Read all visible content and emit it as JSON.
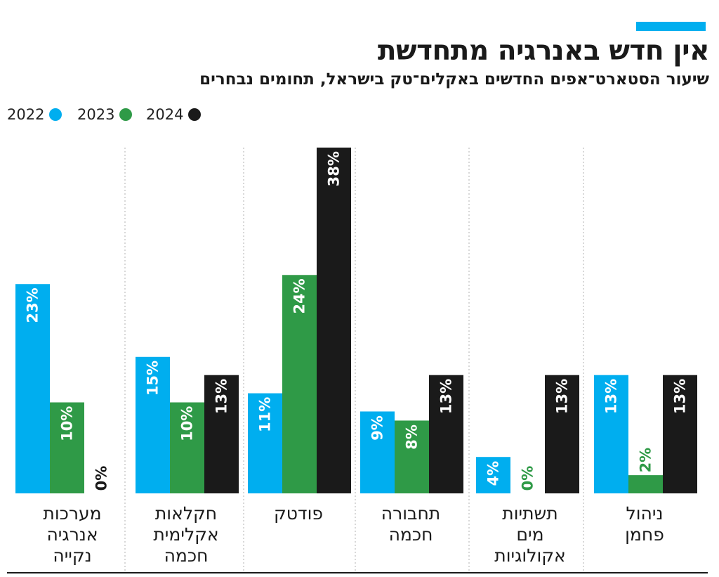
{
  "header": {
    "title": "אין חדש באנרגיה מתחדשת",
    "subtitle": "שיעור הסטארט־אפים החדשים באקלים־טק בישראל, תחומים נבחרים"
  },
  "colors": {
    "accent": "#00aeef",
    "series_2022": "#00aeef",
    "series_2023": "#2f9a47",
    "series_2024": "#1a1a1a",
    "zero_label": "#1a1a1a",
    "zero_label_green": "#2f9a47",
    "grid": "#bdbdbd",
    "baseline": "#1a1a1a"
  },
  "legend": [
    {
      "label": "2022",
      "color": "#00aeef"
    },
    {
      "label": "2023",
      "color": "#2f9a47"
    },
    {
      "label": "2024",
      "color": "#1a1a1a"
    }
  ],
  "chart_data": {
    "type": "bar",
    "title": "אין חדש באנרגיה מתחדשת",
    "subtitle": "שיעור הסטארט־אפים החדשים באקלים־טק בישראל, תחומים נבחרים",
    "unit": "%",
    "ylim": [
      0,
      38
    ],
    "category_label_lines": [
      [
        "מערכות",
        "אנרגיה",
        "נקייה"
      ],
      [
        "חקלאות",
        "אקלימית",
        "חכמה"
      ],
      [
        "פודטק"
      ],
      [
        "תחבורה",
        "חכמה"
      ],
      [
        "תשתיות",
        "מים",
        "אקולוגיות"
      ],
      [
        "ניהול",
        "פחמן"
      ]
    ],
    "categories": [
      "מערכות אנרגיה נקייה",
      "חקלאות אקלימית חכמה",
      "פודטק",
      "תחבורה חכמה",
      "תשתיות מים אקולוגיות",
      "ניהול פחמן"
    ],
    "series": [
      {
        "name": "2022",
        "values": [
          23,
          15,
          11,
          9,
          4,
          13
        ],
        "labels": [
          "23%",
          "15%",
          "11%",
          "9%",
          "4%",
          "13%"
        ]
      },
      {
        "name": "2023",
        "values": [
          10,
          10,
          24,
          8,
          0,
          2
        ],
        "labels": [
          "10%",
          "10%",
          "24%",
          "8%",
          "0%",
          "2%"
        ]
      },
      {
        "name": "2024",
        "values": [
          0,
          13,
          38,
          13,
          13,
          13
        ],
        "labels": [
          "0%",
          "13%",
          "38%",
          "13%",
          "13%",
          "13%"
        ]
      }
    ]
  }
}
